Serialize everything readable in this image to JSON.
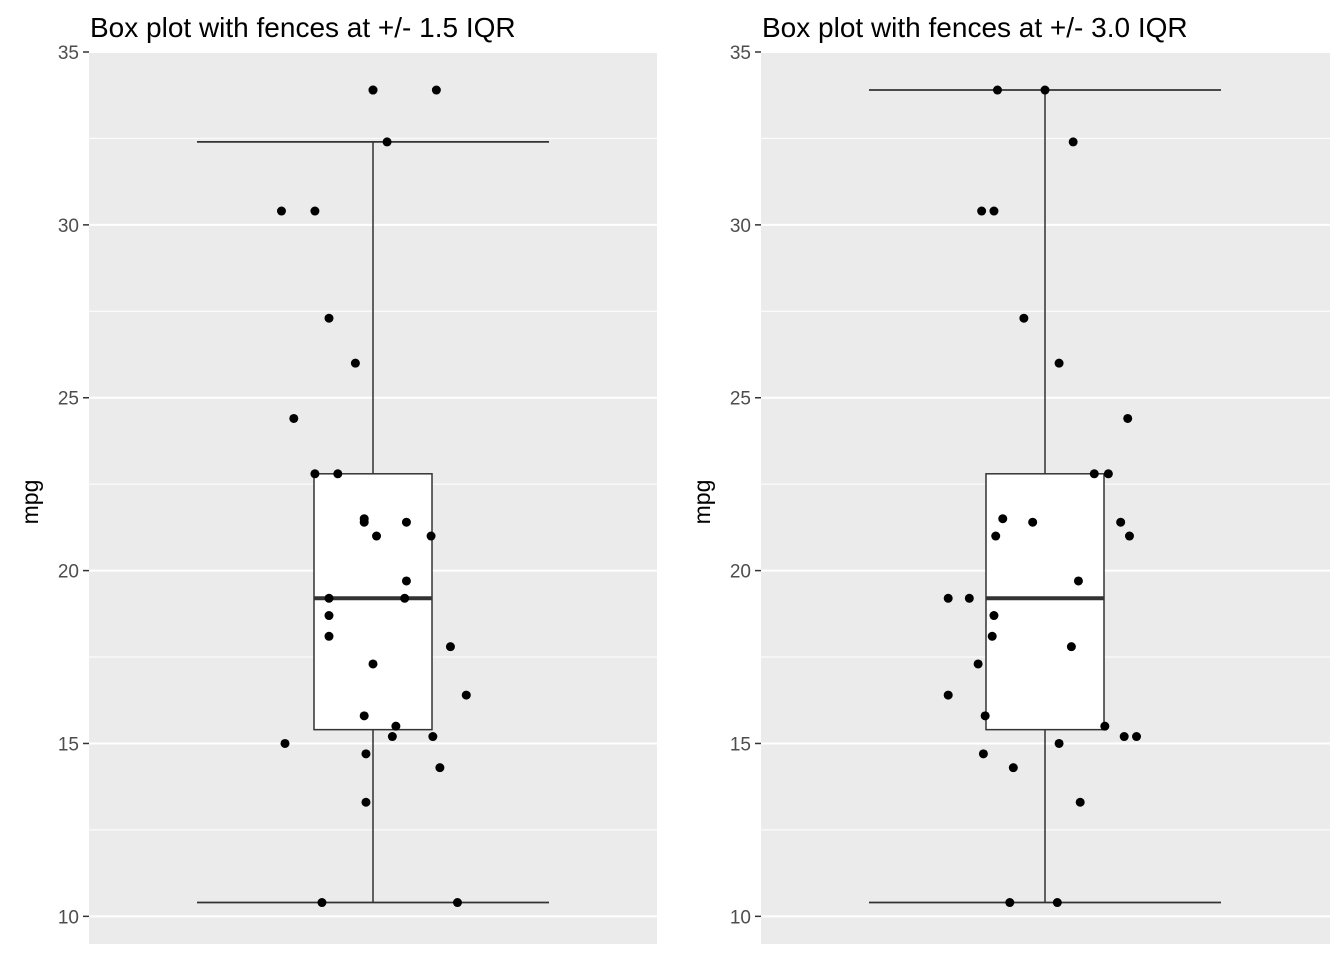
{
  "chart_data": [
    {
      "type": "box",
      "title": "Box plot with fences at +/- 1.5 IQR",
      "xlabel": "",
      "ylabel": "mpg",
      "ylim": [
        9.2,
        35.0
      ],
      "yticks": [
        10,
        15,
        20,
        25,
        30,
        35
      ],
      "grid": true,
      "box": {
        "q1": 15.4,
        "median": 19.2,
        "q3": 22.8,
        "whisker_low": 10.4,
        "whisker_high": 32.4
      },
      "outliers": [
        33.9
      ],
      "points": [
        {
          "x": 0.0,
          "y": 33.9
        },
        {
          "x": 0.36,
          "y": 33.9
        },
        {
          "x": 0.08,
          "y": 32.4
        },
        {
          "x": -0.52,
          "y": 30.4
        },
        {
          "x": -0.33,
          "y": 30.4
        },
        {
          "x": -0.25,
          "y": 27.3
        },
        {
          "x": -0.1,
          "y": 26.0
        },
        {
          "x": -0.45,
          "y": 24.4
        },
        {
          "x": -0.33,
          "y": 22.8
        },
        {
          "x": -0.2,
          "y": 22.8
        },
        {
          "x": -0.05,
          "y": 21.5
        },
        {
          "x": -0.05,
          "y": 21.4
        },
        {
          "x": 0.19,
          "y": 21.4
        },
        {
          "x": 0.02,
          "y": 21.0
        },
        {
          "x": 0.33,
          "y": 21.0
        },
        {
          "x": 0.19,
          "y": 19.7
        },
        {
          "x": -0.25,
          "y": 19.2
        },
        {
          "x": 0.18,
          "y": 19.2
        },
        {
          "x": -0.25,
          "y": 18.7
        },
        {
          "x": -0.25,
          "y": 18.1
        },
        {
          "x": 0.44,
          "y": 17.8
        },
        {
          "x": 0.0,
          "y": 17.3
        },
        {
          "x": 0.53,
          "y": 16.4
        },
        {
          "x": -0.05,
          "y": 15.8
        },
        {
          "x": 0.13,
          "y": 15.5
        },
        {
          "x": 0.11,
          "y": 15.2
        },
        {
          "x": 0.34,
          "y": 15.2
        },
        {
          "x": -0.5,
          "y": 15.0
        },
        {
          "x": -0.04,
          "y": 14.7
        },
        {
          "x": 0.38,
          "y": 14.3
        },
        {
          "x": -0.04,
          "y": 13.3
        },
        {
          "x": -0.29,
          "y": 10.4
        },
        {
          "x": 0.48,
          "y": 10.4
        }
      ]
    },
    {
      "type": "box",
      "title": "Box plot with fences at +/- 3.0 IQR",
      "xlabel": "",
      "ylabel": "mpg",
      "ylim": [
        9.2,
        35.0
      ],
      "yticks": [
        10,
        15,
        20,
        25,
        30,
        35
      ],
      "grid": true,
      "box": {
        "q1": 15.4,
        "median": 19.2,
        "q3": 22.8,
        "whisker_low": 10.4,
        "whisker_high": 33.9
      },
      "outliers": [],
      "points": [
        {
          "x": -0.27,
          "y": 33.9
        },
        {
          "x": 0.0,
          "y": 33.9
        },
        {
          "x": 0.16,
          "y": 32.4
        },
        {
          "x": -0.36,
          "y": 30.4
        },
        {
          "x": -0.29,
          "y": 30.4
        },
        {
          "x": -0.12,
          "y": 27.3
        },
        {
          "x": 0.08,
          "y": 26.0
        },
        {
          "x": 0.47,
          "y": 24.4
        },
        {
          "x": 0.36,
          "y": 22.8
        },
        {
          "x": 0.28,
          "y": 22.8
        },
        {
          "x": -0.24,
          "y": 21.5
        },
        {
          "x": -0.07,
          "y": 21.4
        },
        {
          "x": 0.43,
          "y": 21.4
        },
        {
          "x": -0.28,
          "y": 21.0
        },
        {
          "x": 0.48,
          "y": 21.0
        },
        {
          "x": 0.19,
          "y": 19.7
        },
        {
          "x": -0.55,
          "y": 19.2
        },
        {
          "x": -0.43,
          "y": 19.2
        },
        {
          "x": -0.29,
          "y": 18.7
        },
        {
          "x": -0.3,
          "y": 18.1
        },
        {
          "x": 0.15,
          "y": 17.8
        },
        {
          "x": -0.38,
          "y": 17.3
        },
        {
          "x": -0.55,
          "y": 16.4
        },
        {
          "x": -0.34,
          "y": 15.8
        },
        {
          "x": 0.34,
          "y": 15.5
        },
        {
          "x": 0.45,
          "y": 15.2
        },
        {
          "x": 0.52,
          "y": 15.2
        },
        {
          "x": 0.08,
          "y": 15.0
        },
        {
          "x": -0.35,
          "y": 14.7
        },
        {
          "x": -0.18,
          "y": 14.3
        },
        {
          "x": 0.2,
          "y": 13.3
        },
        {
          "x": -0.2,
          "y": 10.4
        },
        {
          "x": 0.07,
          "y": 10.4
        }
      ]
    }
  ],
  "colors": {
    "panel_background": "#ebebeb",
    "grid": "#ffffff",
    "box_fill": "#ffffff",
    "line": "#333333",
    "point": "#000000",
    "tick_text": "#4d4d4d"
  }
}
